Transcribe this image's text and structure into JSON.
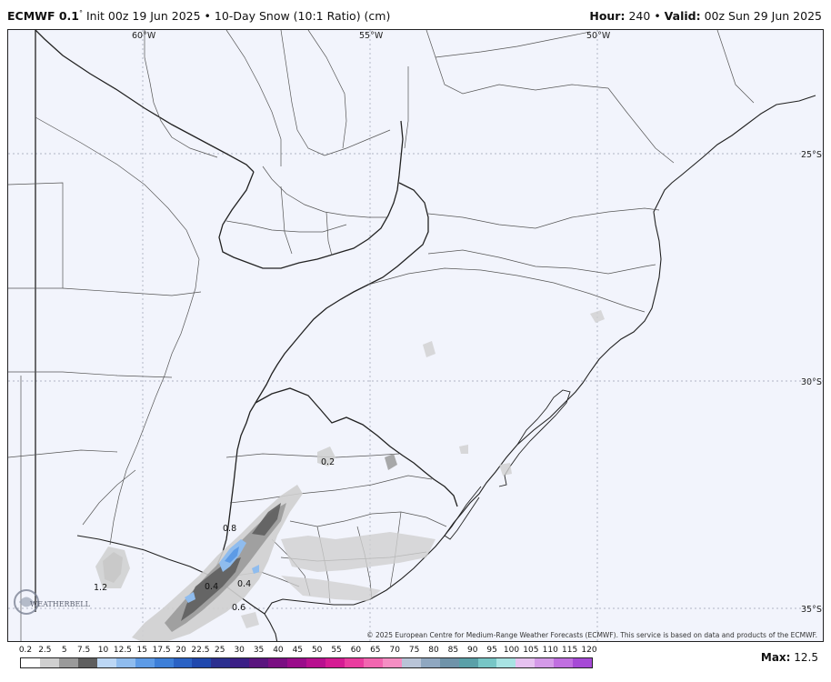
{
  "header": {
    "model": "ECMWF 0.1",
    "degree": "°",
    "init": "Init 00z 19 Jun 2025",
    "sep": "•",
    "product": "10-Day Snow (10:1 Ratio) (cm)",
    "hour_label": "Hour:",
    "hour_value": "240",
    "valid_label": "Valid:",
    "valid_value": "00z Sun 29 Jun 2025"
  },
  "map": {
    "lon_labels": [
      "60°W",
      "55°W",
      "50°W"
    ],
    "lat_labels": [
      "25°S",
      "30°S",
      "35°S"
    ],
    "value_labels": [
      "0.2",
      "0.8",
      "1.2",
      "0.4",
      "0.6",
      "0.4"
    ],
    "copyright": "© 2025 European Centre for Medium-Range Weather Forecasts (ECMWF). This service is based on data and products of the ECMWF.",
    "logo_text": "WEATHERBELL"
  },
  "legend": {
    "ticks": [
      "0.2",
      "2.5",
      "5",
      "7.5",
      "10",
      "12.5",
      "15",
      "17.5",
      "20",
      "22.5",
      "25",
      "30",
      "35",
      "40",
      "45",
      "50",
      "55",
      "60",
      "65",
      "70",
      "75",
      "80",
      "85",
      "90",
      "95",
      "100",
      "105",
      "110",
      "115",
      "120"
    ],
    "colors": [
      "#ffffff",
      "#cfcfcf",
      "#9a9a9a",
      "#5e5e5e",
      "#bcd7f5",
      "#8fbcee",
      "#5d9be6",
      "#3d7fd8",
      "#2a62c4",
      "#1f48ad",
      "#2b2f8f",
      "#3b1f86",
      "#5a157e",
      "#7a0f82",
      "#9a0c8a",
      "#b8108f",
      "#d51b93",
      "#ea3c9f",
      "#f266b0",
      "#f58ec3",
      "#b9c4d7",
      "#8fa7c0",
      "#6f93a9",
      "#5aa0a8",
      "#77c6c6",
      "#a8e3e3",
      "#e6c2f0",
      "#d49ae8",
      "#c06fe0",
      "#a64ad6"
    ],
    "max_label": "Max:",
    "max_value": "12.5"
  }
}
